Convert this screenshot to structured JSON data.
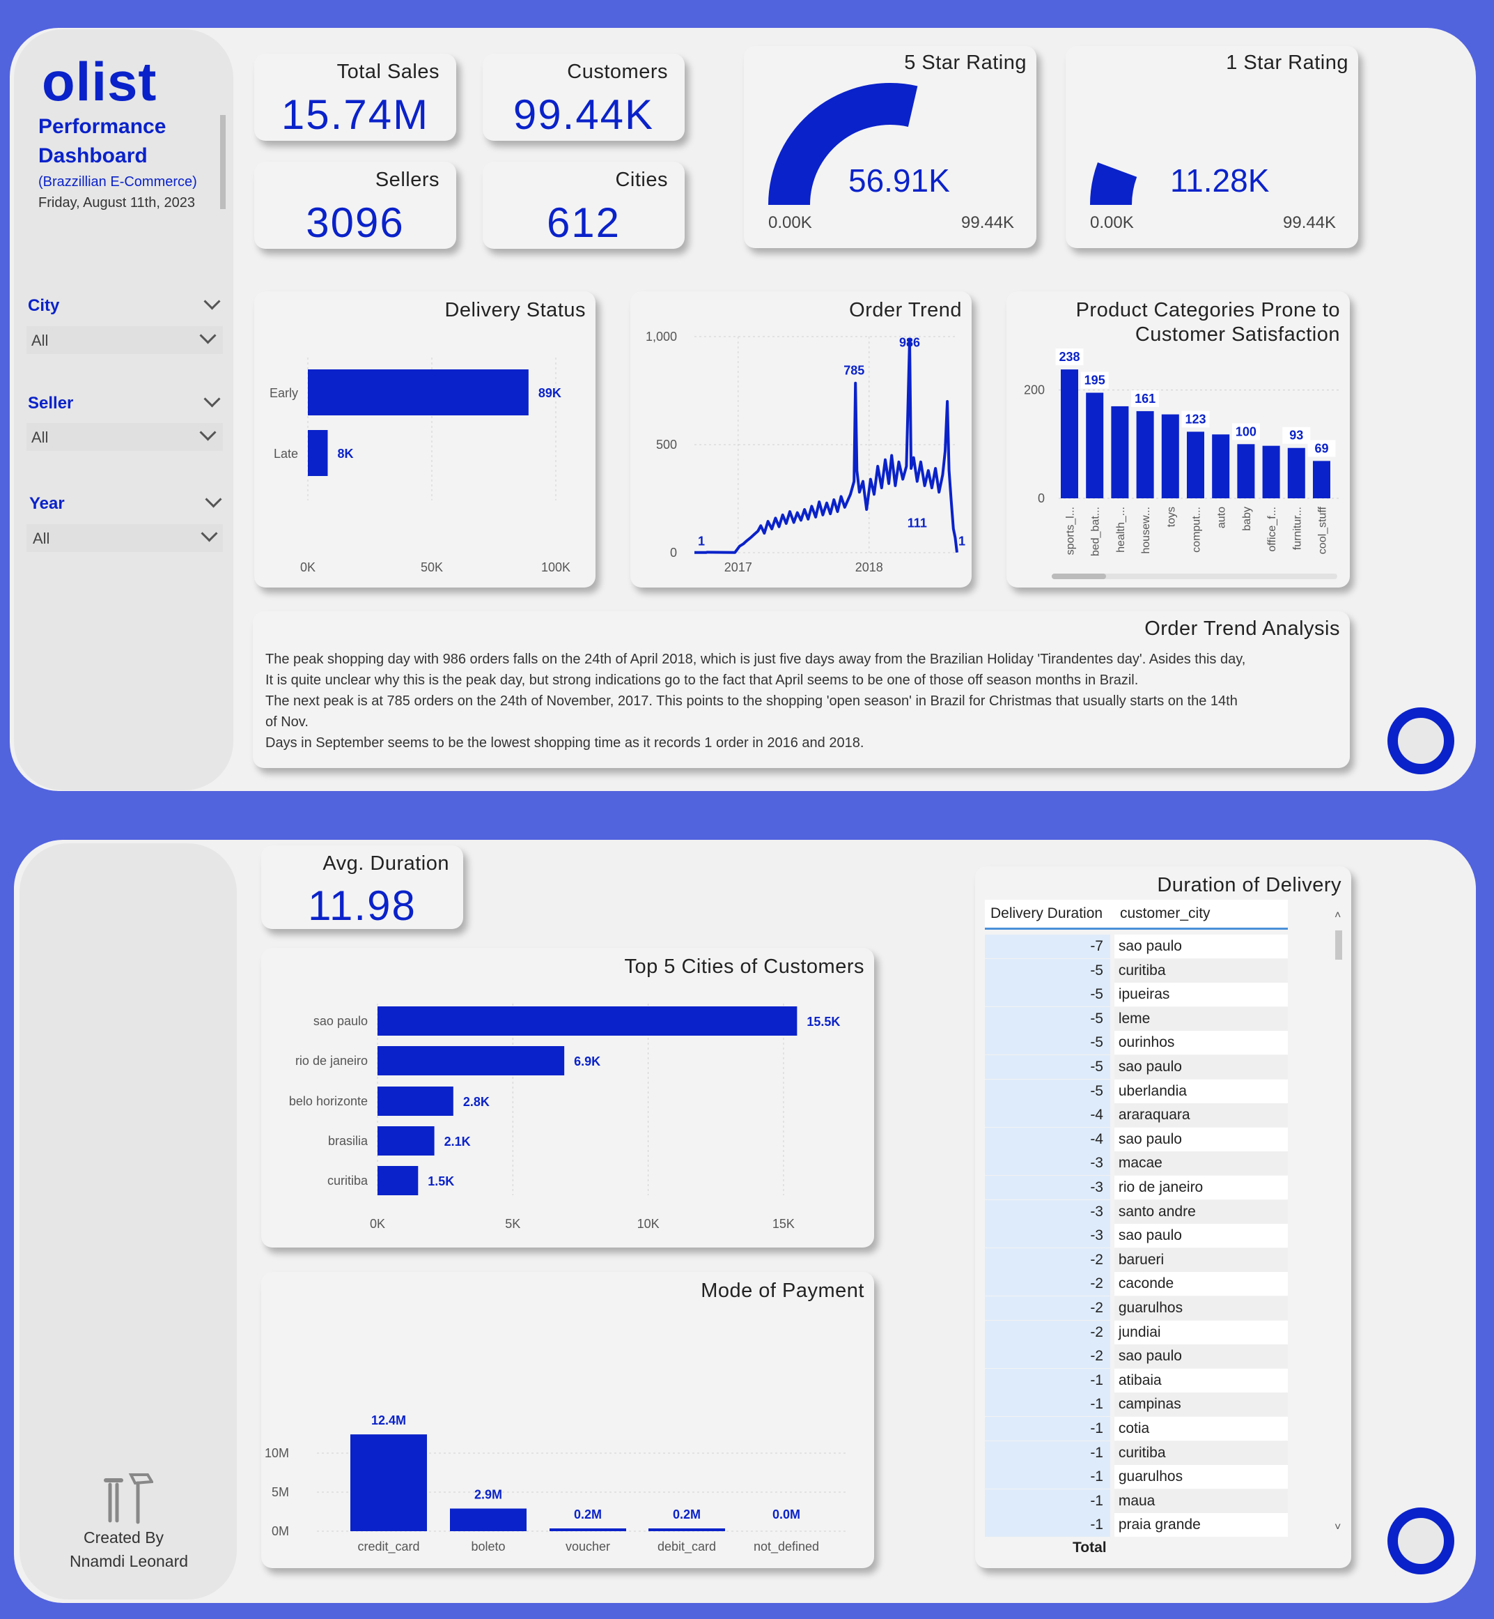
{
  "brand": {
    "logo": "olist",
    "title_line1": "Performance",
    "title_line2": "Dashboard",
    "subtitle": "(Brazzillian E-Commerce)",
    "date": "Friday, August 11th, 2023"
  },
  "filters": [
    {
      "label": "City",
      "value": "All"
    },
    {
      "label": "Seller",
      "value": "All"
    },
    {
      "label": "Year",
      "value": "All"
    }
  ],
  "kpis": {
    "total_sales": {
      "label": "Total Sales",
      "value": "15.74M"
    },
    "customers": {
      "label": "Customers",
      "value": "99.44K"
    },
    "sellers": {
      "label": "Sellers",
      "value": "3096"
    },
    "cities": {
      "label": "Cities",
      "value": "612"
    },
    "avg_duration": {
      "label": "Avg. Duration",
      "value": "11.98"
    }
  },
  "gauges": {
    "five_star": {
      "title": "5 Star Rating",
      "value": "56.91K",
      "min": "0.00K",
      "max": "99.44K",
      "fraction": 0.5723
    },
    "one_star": {
      "title": "1 Star Rating",
      "value": "11.28K",
      "min": "0.00K",
      "max": "99.44K",
      "fraction": 0.1134
    }
  },
  "analysis": {
    "title": "Order Trend Analysis",
    "lines": [
      "The peak shopping day with 986 orders falls on the 24th of April 2018, which is just five days away from the Brazilian Holiday 'Tirandentes day'. Asides this day,",
      "It is quite unclear why this is the peak day, but strong indications go to the fact that April seems to be one of those off season months in Brazil.",
      "The next peak is at 785 orders on the  24th of November, 2017. This points to the shopping 'open season' in Brazil for Christmas that usually starts on the 14th",
      "of Nov.",
      "Days in September seems to be the lowest shopping time as it records 1 order in 2016 and 2018."
    ]
  },
  "credit": {
    "line1": "Created By",
    "line2": "Nnamdi Leonard",
    "icon": "tools-icon"
  },
  "table": {
    "title": "Duration of Delivery",
    "headers": [
      "Delivery Duration",
      "customer_city"
    ],
    "rows": [
      [
        "-7",
        "sao paulo"
      ],
      [
        "-5",
        "curitiba"
      ],
      [
        "-5",
        "ipueiras"
      ],
      [
        "-5",
        "leme"
      ],
      [
        "-5",
        "ourinhos"
      ],
      [
        "-5",
        "sao paulo"
      ],
      [
        "-5",
        "uberlandia"
      ],
      [
        "-4",
        "araraquara"
      ],
      [
        "-4",
        "sao paulo"
      ],
      [
        "-3",
        "macae"
      ],
      [
        "-3",
        "rio de janeiro"
      ],
      [
        "-3",
        "santo andre"
      ],
      [
        "-3",
        "sao paulo"
      ],
      [
        "-2",
        "barueri"
      ],
      [
        "-2",
        "caconde"
      ],
      [
        "-2",
        "guarulhos"
      ],
      [
        "-2",
        "jundiai"
      ],
      [
        "-2",
        "sao paulo"
      ],
      [
        "-1",
        "atibaia"
      ],
      [
        "-1",
        "campinas"
      ],
      [
        "-1",
        "cotia"
      ],
      [
        "-1",
        "curitiba"
      ],
      [
        "-1",
        "guarulhos"
      ],
      [
        "-1",
        "maua"
      ],
      [
        "-1",
        "praia grande"
      ]
    ],
    "total_label": "Total"
  },
  "colors": {
    "bar": "#0A22C9",
    "background": "#5263DE",
    "panel": "#F1F1F1"
  },
  "chart_data": [
    {
      "id": "delivery_status",
      "type": "bar",
      "orientation": "horizontal",
      "title": "Delivery Status",
      "categories": [
        "Early",
        "Late"
      ],
      "values": [
        89000,
        8000
      ],
      "labels": [
        "89K",
        "8K"
      ],
      "xlim": [
        0,
        100000
      ],
      "ticks": [
        "0K",
        "50K",
        "100K"
      ]
    },
    {
      "id": "order_trend",
      "type": "line",
      "title": "Order Trend",
      "x_ticks": [
        "2017",
        "2018"
      ],
      "y_ticks": [
        "0",
        "500",
        "1,000"
      ],
      "ylim": [
        0,
        1000
      ],
      "annotations": [
        {
          "label": "785",
          "value": 785
        },
        {
          "label": "986",
          "value": 986
        },
        {
          "label": "111",
          "value": 111
        },
        {
          "label": "1",
          "value": 1
        },
        {
          "label": "1",
          "value": 1
        }
      ],
      "points": [
        [
          "2016-09-01",
          1
        ],
        [
          "2016-10-04",
          1
        ],
        [
          "2016-10-06",
          2
        ],
        [
          "2016-12-23",
          1
        ],
        [
          "2017-01-05",
          30
        ],
        [
          "2017-01-15",
          40
        ],
        [
          "2017-01-25",
          55
        ],
        [
          "2017-02-05",
          70
        ],
        [
          "2017-02-15",
          85
        ],
        [
          "2017-02-25",
          100
        ],
        [
          "2017-03-05",
          125
        ],
        [
          "2017-03-15",
          90
        ],
        [
          "2017-03-25",
          145
        ],
        [
          "2017-04-05",
          110
        ],
        [
          "2017-04-15",
          160
        ],
        [
          "2017-04-25",
          120
        ],
        [
          "2017-05-05",
          175
        ],
        [
          "2017-05-15",
          135
        ],
        [
          "2017-05-25",
          190
        ],
        [
          "2017-06-05",
          140
        ],
        [
          "2017-06-15",
          185
        ],
        [
          "2017-06-25",
          150
        ],
        [
          "2017-07-05",
          200
        ],
        [
          "2017-07-15",
          155
        ],
        [
          "2017-07-25",
          215
        ],
        [
          "2017-08-05",
          165
        ],
        [
          "2017-08-15",
          235
        ],
        [
          "2017-08-25",
          175
        ],
        [
          "2017-09-05",
          230
        ],
        [
          "2017-09-15",
          180
        ],
        [
          "2017-09-25",
          245
        ],
        [
          "2017-10-05",
          190
        ],
        [
          "2017-10-15",
          260
        ],
        [
          "2017-10-25",
          210
        ],
        [
          "2017-11-10",
          270
        ],
        [
          "2017-11-20",
          330
        ],
        [
          "2017-11-24",
          785
        ],
        [
          "2017-11-28",
          380
        ],
        [
          "2017-12-05",
          280
        ],
        [
          "2017-12-15",
          330
        ],
        [
          "2017-12-25",
          200
        ],
        [
          "2018-01-05",
          340
        ],
        [
          "2018-01-15",
          270
        ],
        [
          "2018-01-25",
          400
        ],
        [
          "2018-02-05",
          300
        ],
        [
          "2018-02-15",
          430
        ],
        [
          "2018-02-25",
          320
        ],
        [
          "2018-03-05",
          450
        ],
        [
          "2018-03-15",
          310
        ],
        [
          "2018-03-25",
          420
        ],
        [
          "2018-04-05",
          340
        ],
        [
          "2018-04-15",
          400
        ],
        [
          "2018-04-24",
          986
        ],
        [
          "2018-04-28",
          390
        ],
        [
          "2018-05-05",
          440
        ],
        [
          "2018-05-15",
          330
        ],
        [
          "2018-05-25",
          420
        ],
        [
          "2018-06-05",
          310
        ],
        [
          "2018-06-15",
          380
        ],
        [
          "2018-06-25",
          300
        ],
        [
          "2018-07-05",
          390
        ],
        [
          "2018-07-15",
          280
        ],
        [
          "2018-07-25",
          360
        ],
        [
          "2018-08-01",
          470
        ],
        [
          "2018-08-07",
          700
        ],
        [
          "2018-08-12",
          380
        ],
        [
          "2018-08-18",
          240
        ],
        [
          "2018-08-24",
          111
        ],
        [
          "2018-08-29",
          70
        ],
        [
          "2018-09-03",
          1
        ]
      ]
    },
    {
      "id": "product_categories",
      "type": "bar",
      "title": "Product Categories Prone to Customer Satisfaction",
      "categories": [
        "sports_l...",
        "bed_bat...",
        "health_...",
        "housew...",
        "toys",
        "comput...",
        "auto",
        "baby",
        "office_f...",
        "furnitur...",
        "cool_stuff"
      ],
      "values": [
        238,
        195,
        170,
        161,
        155,
        123,
        118,
        100,
        97,
        93,
        69
      ],
      "labels": [
        "238",
        "195",
        "",
        "161",
        "",
        "123",
        "",
        "100",
        "",
        "93",
        "69"
      ],
      "ylim": [
        0,
        260
      ],
      "y_ticks": [
        "0",
        "200"
      ]
    },
    {
      "id": "top_cities",
      "type": "bar",
      "orientation": "horizontal",
      "title": "Top 5 Cities of Customers",
      "categories": [
        "sao paulo",
        "rio de janeiro",
        "belo horizonte",
        "brasilia",
        "curitiba"
      ],
      "values": [
        15500,
        6900,
        2800,
        2100,
        1500
      ],
      "labels": [
        "15.5K",
        "6.9K",
        "2.8K",
        "2.1K",
        "1.5K"
      ],
      "xlim": [
        0,
        17000
      ],
      "ticks": [
        "0K",
        "5K",
        "10K",
        "15K"
      ]
    },
    {
      "id": "payment",
      "type": "bar",
      "title": "Mode of Payment",
      "categories": [
        "credit_card",
        "boleto",
        "voucher",
        "debit_card",
        "not_defined"
      ],
      "values": [
        12400000,
        2900000,
        200000,
        200000,
        0
      ],
      "labels": [
        "12.4M",
        "2.9M",
        "0.2M",
        "0.2M",
        "0.0M"
      ],
      "ylim": [
        0,
        13000000
      ],
      "y_ticks": [
        "0M",
        "5M",
        "10M"
      ]
    }
  ]
}
